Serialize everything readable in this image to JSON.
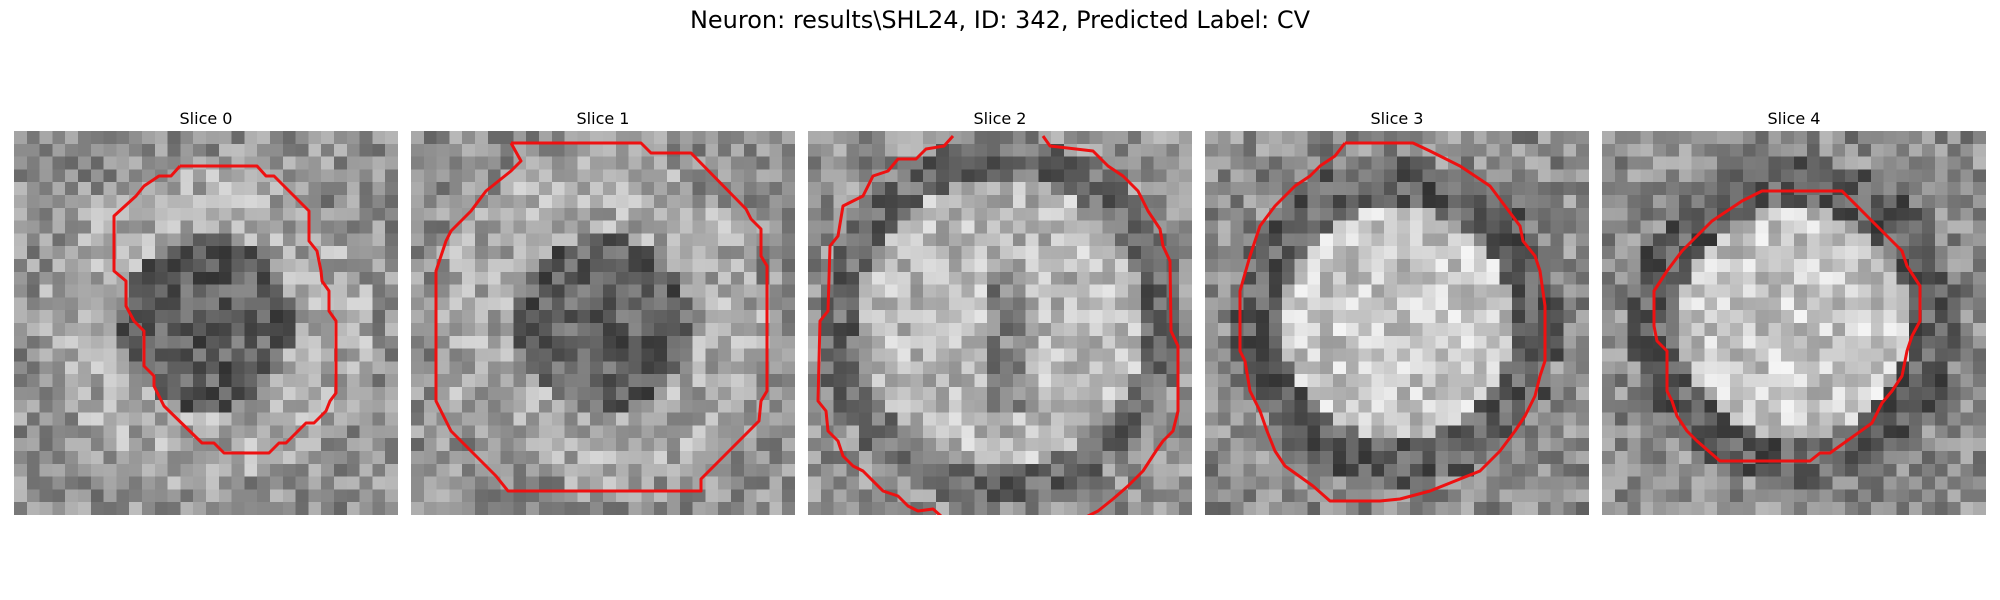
{
  "figure": {
    "title": "Neuron: results\\SHL24, ID: 342, Predicted Label: CV",
    "contour_color": "#ee1111"
  },
  "slices": [
    {
      "title": "Slice 0",
      "center_tone": "dark"
    },
    {
      "title": "Slice 1",
      "center_tone": "dark"
    },
    {
      "title": "Slice 2",
      "center_tone": "mixed"
    },
    {
      "title": "Slice 3",
      "center_tone": "bright"
    },
    {
      "title": "Slice 4",
      "center_tone": "bright"
    }
  ]
}
